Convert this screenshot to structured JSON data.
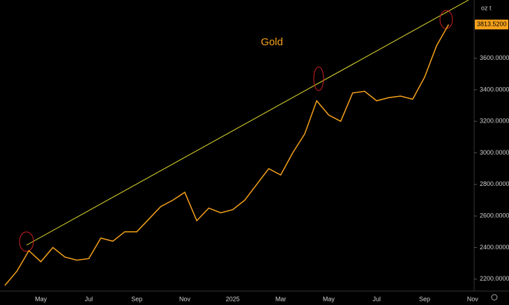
{
  "chart_data": {
    "type": "line",
    "title": "Gold",
    "unit_label": "oz t",
    "color": "#f7a21b",
    "categories": [
      null,
      null,
      null,
      "May",
      null,
      null,
      null,
      "Jul",
      null,
      null,
      null,
      "Sep",
      null,
      null,
      null,
      "Nov",
      null,
      null,
      null,
      "2025",
      null,
      null,
      null,
      "Mar",
      null,
      null,
      null,
      "May",
      null,
      null,
      null,
      "Jul",
      null,
      null,
      null,
      "Sep",
      null,
      null,
      null,
      "Nov"
    ],
    "values": [
      2160,
      2250,
      2380,
      2310,
      2400,
      2340,
      2320,
      2330,
      2460,
      2440,
      2500,
      2500,
      2580,
      2660,
      2700,
      2750,
      2570,
      2650,
      2620,
      2640,
      2700,
      2800,
      2900,
      2860,
      3000,
      3120,
      3330,
      3240,
      3200,
      3380,
      3390,
      3330,
      3350,
      3360,
      3340,
      3480,
      3680,
      3813.52,
      null,
      null
    ],
    "last_value_label": "3813.5200",
    "ylim": [
      2124,
      3969
    ],
    "yticks": [
      {
        "value": 2200,
        "label": "2200.0000"
      },
      {
        "value": 2400,
        "label": "2400.0000"
      },
      {
        "value": 2600,
        "label": "2600.0000"
      },
      {
        "value": 2800,
        "label": "2800.0000"
      },
      {
        "value": 3000,
        "label": "3000.0000"
      },
      {
        "value": 3200,
        "label": "3200.0000"
      },
      {
        "value": 3400,
        "label": "3400.0000"
      },
      {
        "value": 3600,
        "label": "3600.0000"
      }
    ],
    "grid": false
  }
}
